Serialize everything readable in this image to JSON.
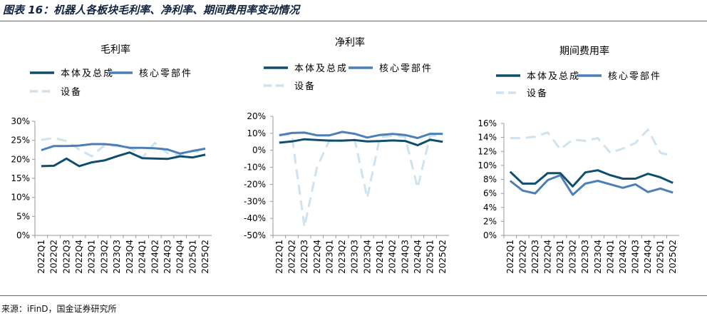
{
  "header": {
    "title": "图表 16：机器人各板块毛利率、净利率、期间费用率变动情况"
  },
  "footer": {
    "source": "来源：iFinD，国金证券研究所"
  },
  "colors": {
    "ontology": "#0f4e6e",
    "parts": "#4a7fb8",
    "equipment": "#cfe2f0",
    "axis": "#999999",
    "text": "#000000"
  },
  "chart_data": [
    {
      "type": "line",
      "title": "毛利率",
      "categories": [
        "2022Q1",
        "2022Q2",
        "2022Q3",
        "2022Q4",
        "2023Q1",
        "2023Q2",
        "2023Q3",
        "2023Q4",
        "2024Q1",
        "2024Q2",
        "2024Q3",
        "2024Q4",
        "2025Q1",
        "2025Q2"
      ],
      "yticks": [
        "0%",
        "5%",
        "10%",
        "15%",
        "20%",
        "25%",
        "30%"
      ],
      "ylim": [
        0,
        30
      ],
      "series": [
        {
          "name": "本体及总成",
          "style": "solid",
          "values": [
            18.2,
            18.3,
            20.2,
            18.2,
            19.2,
            19.7,
            20.8,
            21.8,
            20.3,
            20.2,
            20.1,
            20.8,
            20.5,
            21.2
          ]
        },
        {
          "name": "核心零部件",
          "style": "solid",
          "values": [
            22.4,
            23.5,
            23.5,
            23.6,
            24.0,
            24.0,
            23.7,
            23.0,
            23.0,
            22.9,
            22.6,
            21.5,
            22.2,
            22.8
          ]
        },
        {
          "name": "设备",
          "style": "dashed",
          "values": [
            25.1,
            25.6,
            24.8,
            22.6,
            20.8,
            23.7,
            23.5,
            23.2,
            20.4,
            24.3,
            21.6,
            21.0,
            22.3,
            21.7
          ]
        }
      ]
    },
    {
      "type": "line",
      "title": "净利率",
      "categories": [
        "2022Q1",
        "2022Q2",
        "2022Q3",
        "2022Q4",
        "2023Q1",
        "2023Q2",
        "2023Q3",
        "2023Q4",
        "2024Q1",
        "2024Q2",
        "2024Q3",
        "2024Q4",
        "2025Q1",
        "2025Q2"
      ],
      "yticks": [
        "-50%",
        "-40%",
        "-30%",
        "-20%",
        "-10%",
        "0%",
        "10%",
        "20%"
      ],
      "ylim": [
        -50,
        20
      ],
      "series": [
        {
          "name": "本体及总成",
          "style": "solid",
          "values": [
            4.5,
            5.2,
            6.5,
            6.1,
            5.7,
            5.7,
            6.0,
            5.2,
            5.4,
            5.8,
            5.5,
            3.0,
            6.2,
            5.0
          ]
        },
        {
          "name": "核心零部件",
          "style": "solid",
          "values": [
            8.8,
            10.2,
            10.4,
            8.8,
            8.8,
            10.8,
            9.7,
            7.5,
            9.0,
            9.6,
            9.0,
            7.2,
            9.7,
            9.7
          ]
        },
        {
          "name": "设备",
          "style": "dashed",
          "values": [
            9.4,
            8.9,
            -45.0,
            -10.0,
            6.0,
            5.5,
            6.3,
            -28.0,
            7.7,
            8.5,
            8.0,
            -22.0,
            8.5,
            9.0
          ]
        }
      ]
    },
    {
      "type": "line",
      "title": "期间费用率",
      "categories": [
        "2022Q1",
        "2022Q2",
        "2022Q3",
        "2022Q4",
        "2023Q1",
        "2023Q2",
        "2023Q3",
        "2023Q4",
        "2024Q1",
        "2024Q2",
        "2024Q3",
        "2024Q4",
        "2025Q1",
        "2025Q2"
      ],
      "yticks": [
        "0%",
        "2%",
        "4%",
        "6%",
        "8%",
        "10%",
        "12%",
        "14%",
        "16%"
      ],
      "ylim": [
        0,
        16
      ],
      "series": [
        {
          "name": "本体及总成",
          "style": "solid",
          "values": [
            9.1,
            7.4,
            7.4,
            8.9,
            8.9,
            7.0,
            9.0,
            9.3,
            8.6,
            8.1,
            8.1,
            8.8,
            8.3,
            7.5
          ]
        },
        {
          "name": "核心零部件",
          "style": "solid",
          "values": [
            7.8,
            6.4,
            6.0,
            7.9,
            8.6,
            5.8,
            7.4,
            7.8,
            7.3,
            6.8,
            7.3,
            6.2,
            6.7,
            6.1
          ]
        },
        {
          "name": "设备",
          "style": "dashed",
          "values": [
            13.9,
            13.9,
            14.1,
            14.7,
            12.3,
            13.7,
            13.5,
            13.9,
            11.8,
            12.4,
            13.2,
            15.1,
            11.8,
            11.3
          ]
        }
      ]
    }
  ]
}
